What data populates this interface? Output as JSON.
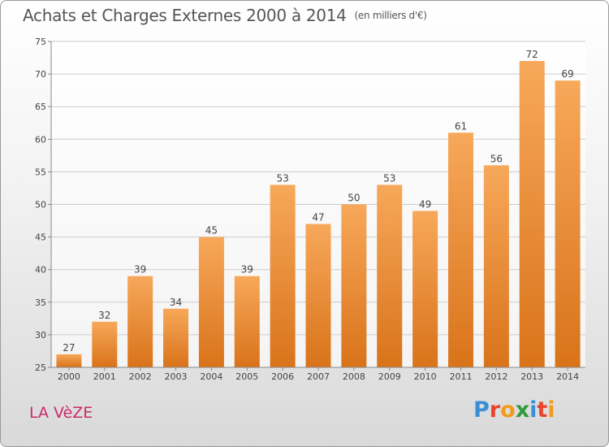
{
  "header": {
    "title": "Achats et Charges Externes 2000 à 2014",
    "unit": "(en milliers d'€)"
  },
  "footer": {
    "place": "LA VèZE"
  },
  "logo": {
    "text": "Proxiti",
    "letters": [
      {
        "ch": "P",
        "color": "#3a8fd6"
      },
      {
        "ch": "r",
        "color": "#e8452c"
      },
      {
        "ch": "o",
        "color": "#f29b1a"
      },
      {
        "ch": "x",
        "color": "#2f9c3a"
      },
      {
        "ch": "i",
        "color": "#3a8fd6"
      },
      {
        "ch": "t",
        "color": "#e8452c"
      },
      {
        "ch": "i",
        "color": "#f29b1a"
      }
    ]
  },
  "chart_data": {
    "type": "bar",
    "categories": [
      "2000",
      "2001",
      "2002",
      "2003",
      "2004",
      "2005",
      "2006",
      "2007",
      "2008",
      "2009",
      "2010",
      "2011",
      "2012",
      "2013",
      "2014"
    ],
    "values": [
      27,
      32,
      39,
      34,
      45,
      39,
      53,
      47,
      50,
      53,
      49,
      61,
      56,
      72,
      69
    ],
    "ylim": [
      25,
      75
    ],
    "yticks": [
      25,
      30,
      35,
      40,
      45,
      50,
      55,
      60,
      65,
      70,
      75
    ],
    "grid": true,
    "bar_color_top": "#f7a85a",
    "bar_color_bottom": "#d9731a",
    "grid_color": "#cccccc"
  }
}
